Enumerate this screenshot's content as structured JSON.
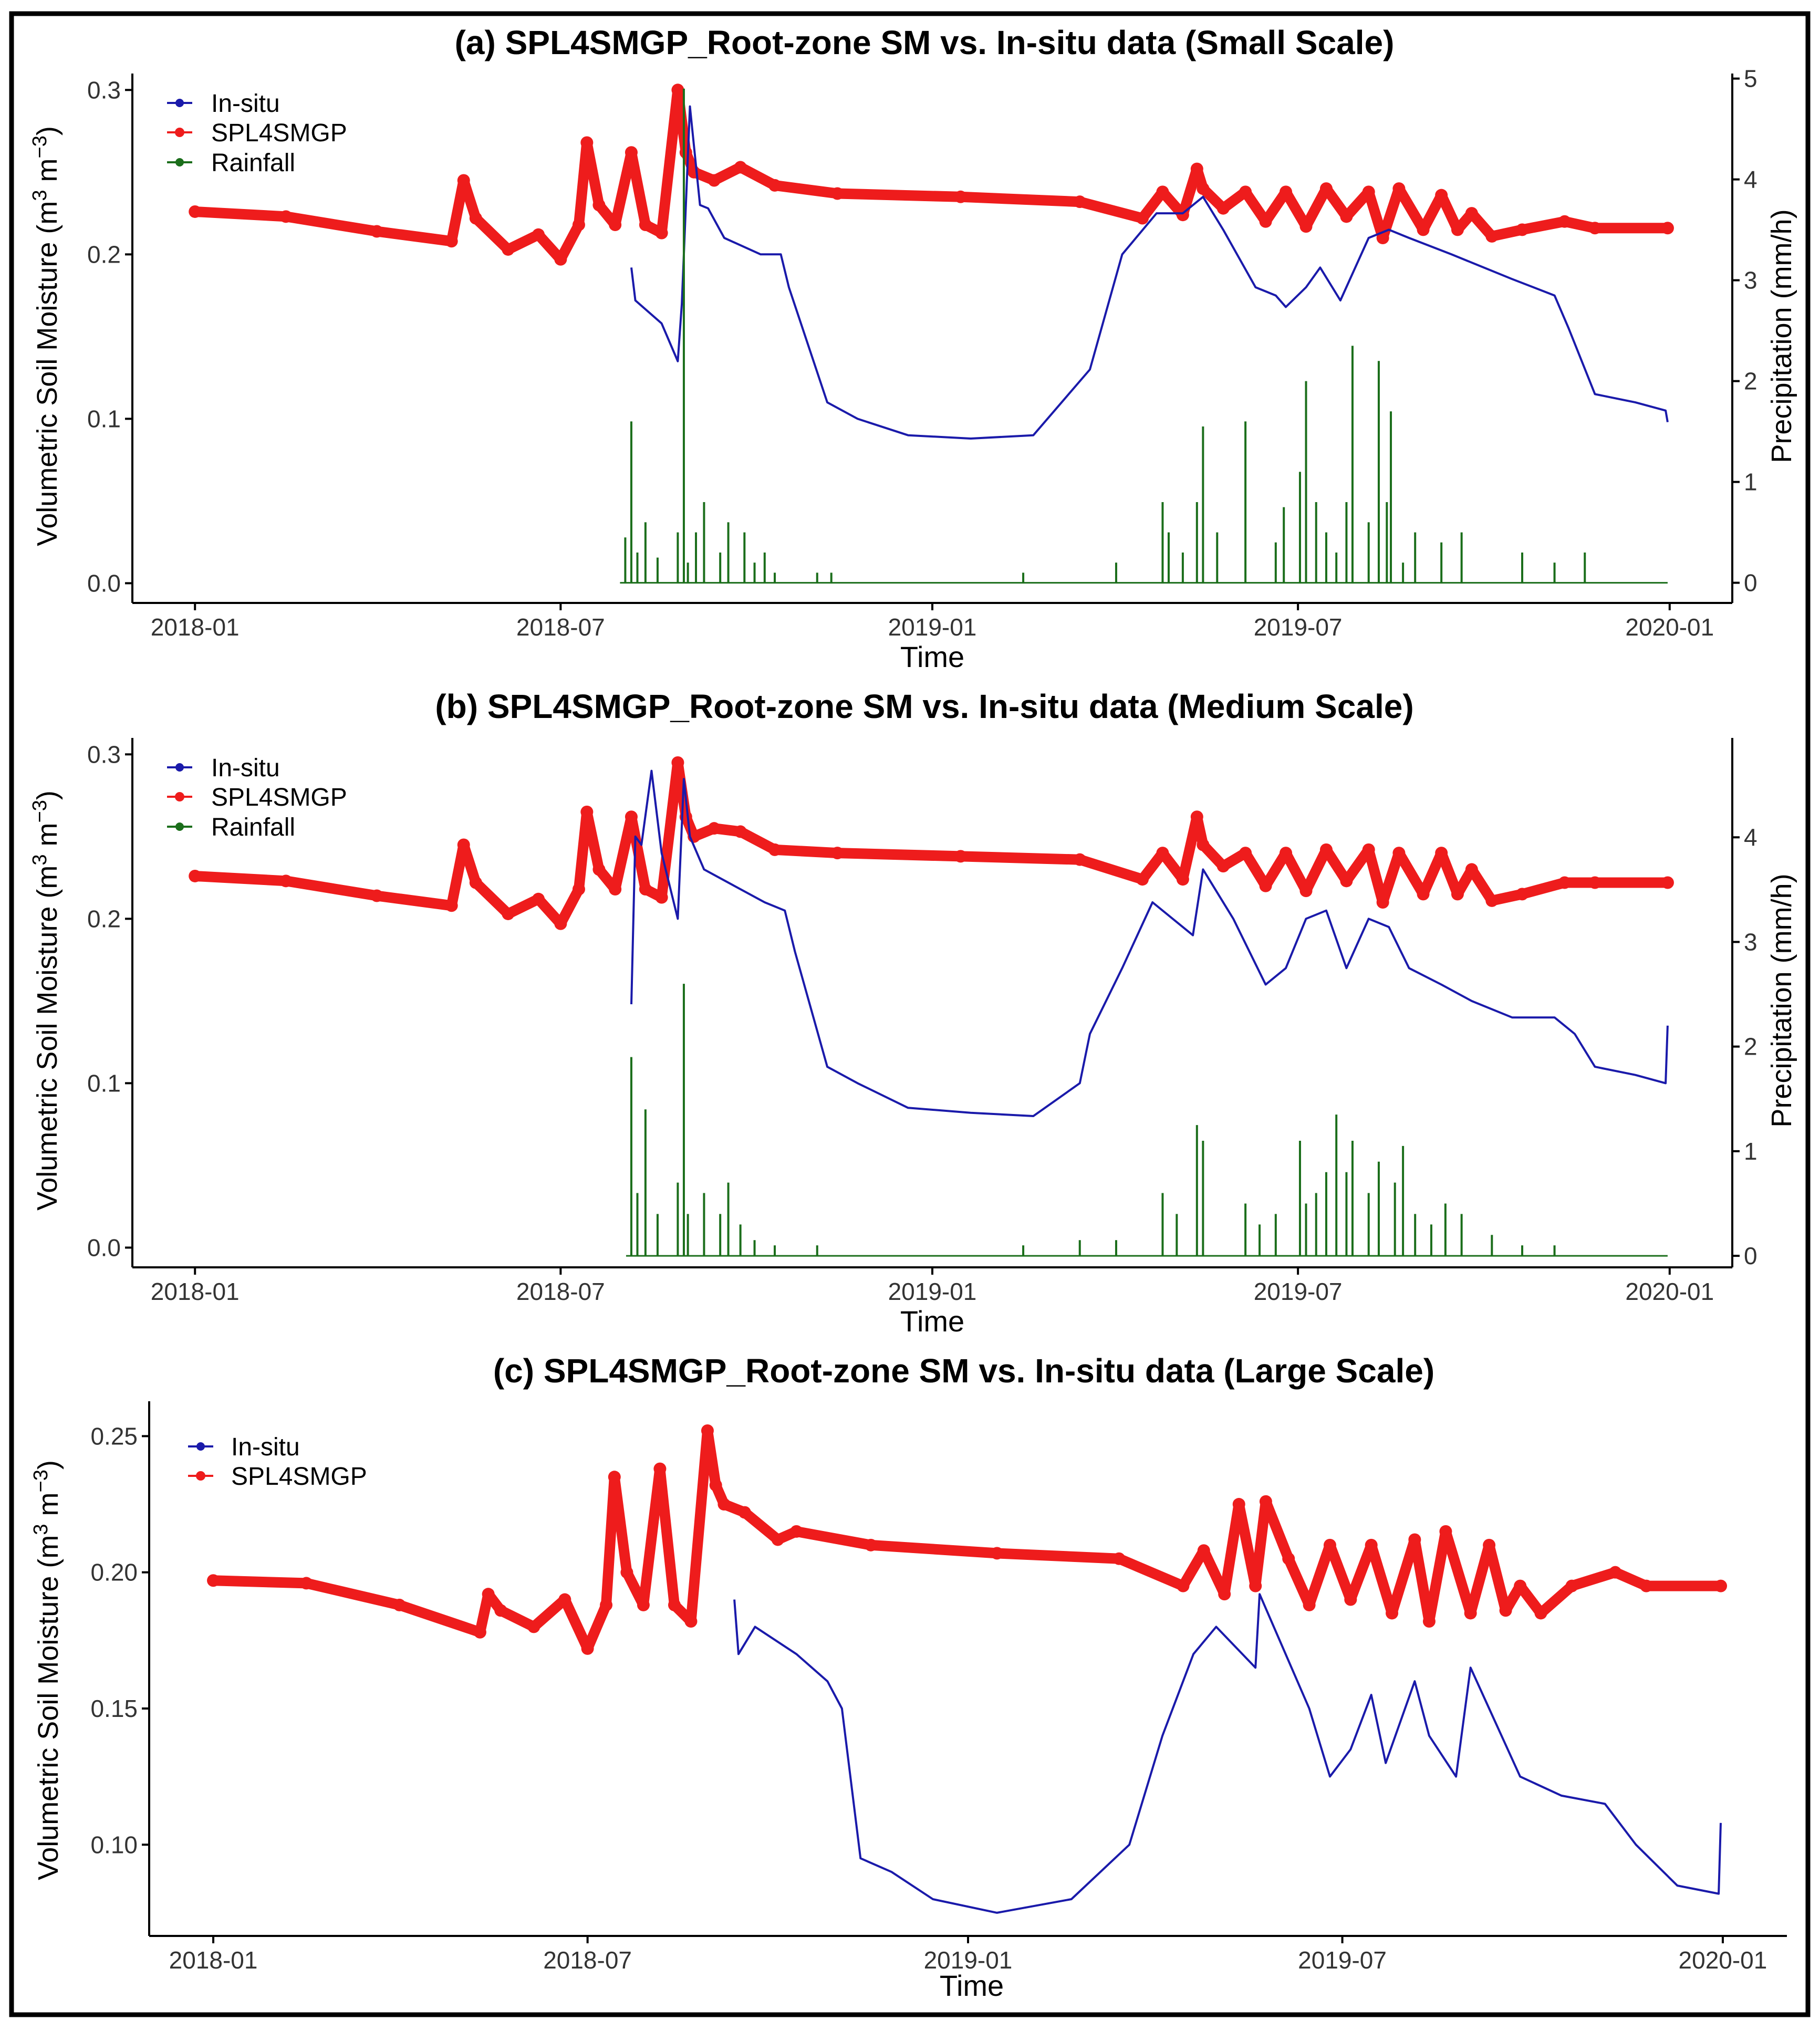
{
  "chart_data": [
    {
      "type": "line",
      "title": "(a) SPL4SMGP_Root-zone SM vs. In-situ data (Small Scale)",
      "xlabel": "Time",
      "ylabel": "Volumetric Soil Moisture",
      "y2label": "Precipitation (mm/h)",
      "xlim": [
        "2017-12-01",
        "2020-02-01"
      ],
      "ylim": [
        -0.012,
        0.31
      ],
      "y2lim": [
        -0.2,
        5.05
      ],
      "x_ticks": [
        "2018-01",
        "2018-07",
        "2019-01",
        "2019-07",
        "2020-01"
      ],
      "y_ticks": [
        "0.0",
        "0.1",
        "0.2",
        "0.3"
      ],
      "y2_ticks": [
        "0",
        "1",
        "2",
        "3",
        "4",
        "5"
      ],
      "legend": {
        "position": "top-left",
        "entries": [
          "In-situ",
          "SPL4SMGP",
          "Rainfall"
        ]
      },
      "colors": {
        "insitu": "#1a1aaa",
        "smap": "#ee1c1c",
        "rain": "#1b6e1b"
      },
      "series": [
        {
          "name": "SPL4SMGP",
          "axis": "left",
          "x": [
            "2018-01-01",
            "2018-02-15",
            "2018-04-01",
            "2018-05-08",
            "2018-05-14",
            "2018-05-20",
            "2018-06-05",
            "2018-06-20",
            "2018-07-01",
            "2018-07-10",
            "2018-07-14",
            "2018-07-20",
            "2018-07-28",
            "2018-08-05",
            "2018-08-12",
            "2018-08-20",
            "2018-08-28",
            "2018-09-01",
            "2018-09-05",
            "2018-09-15",
            "2018-09-28",
            "2018-10-15",
            "2018-11-15",
            "2019-01-15",
            "2019-03-15",
            "2019-04-15",
            "2019-04-25",
            "2019-05-05",
            "2019-05-12",
            "2019-05-15",
            "2019-05-25",
            "2019-06-05",
            "2019-06-15",
            "2019-06-25",
            "2019-07-05",
            "2019-07-15",
            "2019-07-25",
            "2019-08-05",
            "2019-08-12",
            "2019-08-20",
            "2019-09-01",
            "2019-09-10",
            "2019-09-18",
            "2019-09-25",
            "2019-10-05",
            "2019-10-20",
            "2019-11-10",
            "2019-11-25",
            "2019-12-31"
          ],
          "y": [
            0.226,
            0.223,
            0.214,
            0.208,
            0.245,
            0.222,
            0.203,
            0.212,
            0.197,
            0.218,
            0.268,
            0.23,
            0.218,
            0.262,
            0.218,
            0.213,
            0.3,
            0.262,
            0.25,
            0.245,
            0.253,
            0.242,
            0.237,
            0.235,
            0.232,
            0.222,
            0.238,
            0.224,
            0.252,
            0.24,
            0.228,
            0.238,
            0.22,
            0.238,
            0.217,
            0.24,
            0.223,
            0.238,
            0.21,
            0.24,
            0.215,
            0.236,
            0.215,
            0.225,
            0.211,
            0.215,
            0.22,
            0.216,
            0.216
          ]
        },
        {
          "name": "In-situ",
          "axis": "left",
          "x": [
            "2018-08-05",
            "2018-08-07",
            "2018-08-20",
            "2018-08-28",
            "2018-08-30",
            "2018-09-03",
            "2018-09-08",
            "2018-09-12",
            "2018-09-20",
            "2018-10-08",
            "2018-10-18",
            "2018-10-22",
            "2018-11-10",
            "2018-11-25",
            "2018-12-20",
            "2019-01-20",
            "2019-02-20",
            "2019-03-20",
            "2019-04-05",
            "2019-04-22",
            "2019-05-05",
            "2019-05-15",
            "2019-05-25",
            "2019-06-10",
            "2019-06-20",
            "2019-06-25",
            "2019-07-05",
            "2019-07-12",
            "2019-07-22",
            "2019-08-05",
            "2019-08-15",
            "2019-08-25",
            "2019-09-15",
            "2019-10-15",
            "2019-11-05",
            "2019-11-12",
            "2019-11-25",
            "2019-12-15",
            "2019-12-30",
            "2019-12-31"
          ],
          "y": [
            0.192,
            0.172,
            0.158,
            0.135,
            0.17,
            0.29,
            0.23,
            0.228,
            0.21,
            0.2,
            0.2,
            0.18,
            0.11,
            0.1,
            0.09,
            0.088,
            0.09,
            0.13,
            0.2,
            0.225,
            0.225,
            0.235,
            0.215,
            0.18,
            0.175,
            0.168,
            0.18,
            0.192,
            0.172,
            0.21,
            0.215,
            0.21,
            0.2,
            0.185,
            0.175,
            0.155,
            0.115,
            0.11,
            0.105,
            0.098
          ]
        },
        {
          "name": "Rainfall",
          "axis": "right",
          "type": "bar",
          "x": [
            "2018-08-02",
            "2018-08-05",
            "2018-08-08",
            "2018-08-12",
            "2018-08-18",
            "2018-08-28",
            "2018-08-31",
            "2018-09-02",
            "2018-09-06",
            "2018-09-10",
            "2018-09-18",
            "2018-09-22",
            "2018-09-30",
            "2018-10-05",
            "2018-10-10",
            "2018-10-15",
            "2018-11-05",
            "2018-11-12",
            "2019-02-15",
            "2019-04-02",
            "2019-04-25",
            "2019-04-28",
            "2019-05-05",
            "2019-05-12",
            "2019-05-15",
            "2019-05-22",
            "2019-06-05",
            "2019-06-20",
            "2019-06-24",
            "2019-07-02",
            "2019-07-05",
            "2019-07-10",
            "2019-07-15",
            "2019-07-20",
            "2019-07-25",
            "2019-07-28",
            "2019-08-05",
            "2019-08-10",
            "2019-08-14",
            "2019-08-16",
            "2019-08-22",
            "2019-08-28",
            "2019-09-10",
            "2019-09-20",
            "2019-10-20",
            "2019-11-05",
            "2019-11-20"
          ],
          "y": [
            0.45,
            1.6,
            0.3,
            0.6,
            0.25,
            0.5,
            4.9,
            0.2,
            0.5,
            0.8,
            0.3,
            0.6,
            0.5,
            0.2,
            0.3,
            0.1,
            0.1,
            0.1,
            0.1,
            0.2,
            0.8,
            0.5,
            0.3,
            0.8,
            1.55,
            0.5,
            1.6,
            0.4,
            0.75,
            1.1,
            2.0,
            0.8,
            0.5,
            0.3,
            0.8,
            2.35,
            0.6,
            2.2,
            0.8,
            1.7,
            0.2,
            0.5,
            0.4,
            0.5,
            0.3,
            0.2,
            0.3
          ]
        }
      ]
    },
    {
      "type": "line",
      "title": "(b) SPL4SMGP_Root-zone SM vs. In-situ data (Medium Scale)",
      "xlabel": "Time",
      "ylabel": "Volumetric Soil Moisture",
      "y2label": "Precipitation (mm/h)",
      "xlim": [
        "2017-12-01",
        "2020-02-01"
      ],
      "ylim": [
        -0.012,
        0.31
      ],
      "y2lim": [
        -0.11,
        4.95
      ],
      "x_ticks": [
        "2018-01",
        "2018-07",
        "2019-01",
        "2019-07",
        "2020-01"
      ],
      "y_ticks": [
        "0.0",
        "0.1",
        "0.2",
        "0.3"
      ],
      "y2_ticks": [
        "0",
        "1",
        "2",
        "3",
        "4"
      ],
      "legend": {
        "position": "top-left",
        "entries": [
          "In-situ",
          "SPL4SMGP",
          "Rainfall"
        ]
      },
      "colors": {
        "insitu": "#1a1aaa",
        "smap": "#ee1c1c",
        "rain": "#1b6e1b"
      },
      "series": [
        {
          "name": "SPL4SMGP",
          "axis": "left",
          "x": [
            "2018-01-01",
            "2018-02-15",
            "2018-04-01",
            "2018-05-08",
            "2018-05-14",
            "2018-05-20",
            "2018-06-05",
            "2018-06-20",
            "2018-07-01",
            "2018-07-10",
            "2018-07-14",
            "2018-07-20",
            "2018-07-28",
            "2018-08-05",
            "2018-08-12",
            "2018-08-20",
            "2018-08-28",
            "2018-09-01",
            "2018-09-05",
            "2018-09-15",
            "2018-09-28",
            "2018-10-15",
            "2018-11-15",
            "2019-01-15",
            "2019-03-15",
            "2019-04-15",
            "2019-04-25",
            "2019-05-05",
            "2019-05-12",
            "2019-05-15",
            "2019-05-25",
            "2019-06-05",
            "2019-06-15",
            "2019-06-25",
            "2019-07-05",
            "2019-07-15",
            "2019-07-25",
            "2019-08-05",
            "2019-08-12",
            "2019-08-20",
            "2019-09-01",
            "2019-09-10",
            "2019-09-18",
            "2019-09-25",
            "2019-10-05",
            "2019-10-20",
            "2019-11-10",
            "2019-11-25",
            "2019-12-31"
          ],
          "y": [
            0.226,
            0.223,
            0.214,
            0.208,
            0.245,
            0.222,
            0.203,
            0.212,
            0.197,
            0.218,
            0.265,
            0.23,
            0.218,
            0.262,
            0.218,
            0.213,
            0.295,
            0.262,
            0.25,
            0.255,
            0.253,
            0.242,
            0.24,
            0.238,
            0.236,
            0.224,
            0.24,
            0.224,
            0.262,
            0.245,
            0.232,
            0.24,
            0.22,
            0.24,
            0.217,
            0.242,
            0.223,
            0.242,
            0.21,
            0.24,
            0.215,
            0.24,
            0.215,
            0.23,
            0.211,
            0.215,
            0.222,
            0.222,
            0.222
          ]
        },
        {
          "name": "In-situ",
          "axis": "left",
          "x": [
            "2018-08-05",
            "2018-08-07",
            "2018-08-10",
            "2018-08-15",
            "2018-08-20",
            "2018-08-28",
            "2018-08-31",
            "2018-09-03",
            "2018-09-10",
            "2018-09-25",
            "2018-10-10",
            "2018-10-20",
            "2018-10-25",
            "2018-11-10",
            "2018-11-25",
            "2018-12-20",
            "2019-01-20",
            "2019-02-20",
            "2019-03-15",
            "2019-03-20",
            "2019-04-05",
            "2019-04-20",
            "2019-05-10",
            "2019-05-15",
            "2019-05-30",
            "2019-06-15",
            "2019-06-25",
            "2019-07-05",
            "2019-07-15",
            "2019-07-25",
            "2019-08-05",
            "2019-08-15",
            "2019-08-25",
            "2019-09-10",
            "2019-09-25",
            "2019-10-15",
            "2019-11-05",
            "2019-11-15",
            "2019-11-25",
            "2019-12-15",
            "2019-12-30",
            "2019-12-31"
          ],
          "y": [
            0.148,
            0.25,
            0.245,
            0.29,
            0.24,
            0.2,
            0.285,
            0.25,
            0.23,
            0.22,
            0.21,
            0.205,
            0.18,
            0.11,
            0.1,
            0.085,
            0.082,
            0.08,
            0.1,
            0.13,
            0.17,
            0.21,
            0.19,
            0.23,
            0.2,
            0.16,
            0.17,
            0.2,
            0.205,
            0.17,
            0.2,
            0.195,
            0.17,
            0.16,
            0.15,
            0.14,
            0.14,
            0.13,
            0.11,
            0.105,
            0.1,
            0.135
          ]
        },
        {
          "name": "Rainfall",
          "axis": "right",
          "type": "bar",
          "x": [
            "2018-08-05",
            "2018-08-08",
            "2018-08-12",
            "2018-08-18",
            "2018-08-28",
            "2018-08-31",
            "2018-09-02",
            "2018-09-10",
            "2018-09-18",
            "2018-09-22",
            "2018-09-28",
            "2018-10-05",
            "2018-10-15",
            "2018-11-05",
            "2019-02-15",
            "2019-03-15",
            "2019-04-02",
            "2019-04-25",
            "2019-05-02",
            "2019-05-12",
            "2019-05-15",
            "2019-06-05",
            "2019-06-12",
            "2019-06-20",
            "2019-07-02",
            "2019-07-05",
            "2019-07-10",
            "2019-07-15",
            "2019-07-20",
            "2019-07-25",
            "2019-07-28",
            "2019-08-05",
            "2019-08-10",
            "2019-08-18",
            "2019-08-22",
            "2019-08-28",
            "2019-09-05",
            "2019-09-12",
            "2019-09-20",
            "2019-10-05",
            "2019-10-20",
            "2019-11-05"
          ],
          "y": [
            1.9,
            0.6,
            1.4,
            0.4,
            0.7,
            2.6,
            0.4,
            0.6,
            0.4,
            0.7,
            0.3,
            0.15,
            0.1,
            0.1,
            0.1,
            0.15,
            0.15,
            0.6,
            0.4,
            1.25,
            1.1,
            0.5,
            0.3,
            0.4,
            1.1,
            0.5,
            0.6,
            0.8,
            1.35,
            0.8,
            1.1,
            0.6,
            0.9,
            0.7,
            1.05,
            0.4,
            0.3,
            0.5,
            0.4,
            0.2,
            0.1,
            0.1
          ]
        }
      ]
    },
    {
      "type": "line",
      "title": "(c) SPL4SMGP_Root-zone SM vs. In-situ data (Large Scale)",
      "xlabel": "Time",
      "ylabel": "Volumetric Soil Moisture",
      "xlim": [
        "2017-12-01",
        "2020-02-01"
      ],
      "ylim": [
        0.0665,
        0.2628
      ],
      "x_ticks": [
        "2018-01",
        "2018-07",
        "2019-01",
        "2019-07",
        "2020-01"
      ],
      "y_ticks": [
        "0.10",
        "0.15",
        "0.20",
        "0.25"
      ],
      "legend": {
        "position": "top-left",
        "entries": [
          "In-situ",
          "SPL4SMGP"
        ]
      },
      "colors": {
        "insitu": "#1a1aaa",
        "smap": "#ee1c1c"
      },
      "series": [
        {
          "name": "SPL4SMGP",
          "axis": "left",
          "x": [
            "2018-01-01",
            "2018-02-15",
            "2018-04-01",
            "2018-05-10",
            "2018-05-14",
            "2018-05-20",
            "2018-06-05",
            "2018-06-20",
            "2018-07-01",
            "2018-07-10",
            "2018-07-14",
            "2018-07-20",
            "2018-07-28",
            "2018-08-05",
            "2018-08-12",
            "2018-08-20",
            "2018-08-28",
            "2018-09-01",
            "2018-09-05",
            "2018-09-15",
            "2018-10-01",
            "2018-10-10",
            "2018-11-15",
            "2019-01-15",
            "2019-03-15",
            "2019-04-15",
            "2019-04-25",
            "2019-05-05",
            "2019-05-12",
            "2019-05-20",
            "2019-05-25",
            "2019-06-05",
            "2019-06-15",
            "2019-06-25",
            "2019-07-05",
            "2019-07-15",
            "2019-07-25",
            "2019-08-05",
            "2019-08-12",
            "2019-08-20",
            "2019-09-01",
            "2019-09-10",
            "2019-09-18",
            "2019-09-25",
            "2019-10-05",
            "2019-10-20",
            "2019-11-10",
            "2019-11-25",
            "2019-12-31"
          ],
          "y": [
            0.197,
            0.196,
            0.188,
            0.178,
            0.192,
            0.186,
            0.18,
            0.19,
            0.172,
            0.188,
            0.235,
            0.2,
            0.188,
            0.238,
            0.188,
            0.182,
            0.252,
            0.232,
            0.225,
            0.222,
            0.212,
            0.215,
            0.21,
            0.207,
            0.205,
            0.195,
            0.208,
            0.192,
            0.225,
            0.195,
            0.226,
            0.205,
            0.188,
            0.21,
            0.19,
            0.21,
            0.185,
            0.212,
            0.182,
            0.215,
            0.185,
            0.21,
            0.186,
            0.195,
            0.185,
            0.195,
            0.2,
            0.195,
            0.195
          ]
        },
        {
          "name": "In-situ",
          "axis": "left",
          "x": [
            "2018-09-10",
            "2018-09-12",
            "2018-09-20",
            "2018-10-10",
            "2018-10-25",
            "2018-11-01",
            "2018-11-10",
            "2018-11-25",
            "2018-12-15",
            "2019-01-15",
            "2019-02-20",
            "2019-03-20",
            "2019-04-05",
            "2019-04-20",
            "2019-05-01",
            "2019-05-20",
            "2019-05-22",
            "2019-06-15",
            "2019-06-25",
            "2019-07-05",
            "2019-07-15",
            "2019-07-22",
            "2019-08-05",
            "2019-08-12",
            "2019-08-25",
            "2019-09-01",
            "2019-09-10",
            "2019-09-25",
            "2019-10-15",
            "2019-11-05",
            "2019-11-20",
            "2019-12-10",
            "2019-12-30",
            "2019-12-31"
          ],
          "y": [
            0.19,
            0.17,
            0.18,
            0.17,
            0.16,
            0.15,
            0.095,
            0.09,
            0.08,
            0.075,
            0.08,
            0.1,
            0.14,
            0.17,
            0.18,
            0.165,
            0.192,
            0.15,
            0.125,
            0.135,
            0.155,
            0.13,
            0.16,
            0.14,
            0.125,
            0.165,
            0.15,
            0.125,
            0.118,
            0.115,
            0.1,
            0.085,
            0.082,
            0.108
          ]
        }
      ]
    }
  ]
}
